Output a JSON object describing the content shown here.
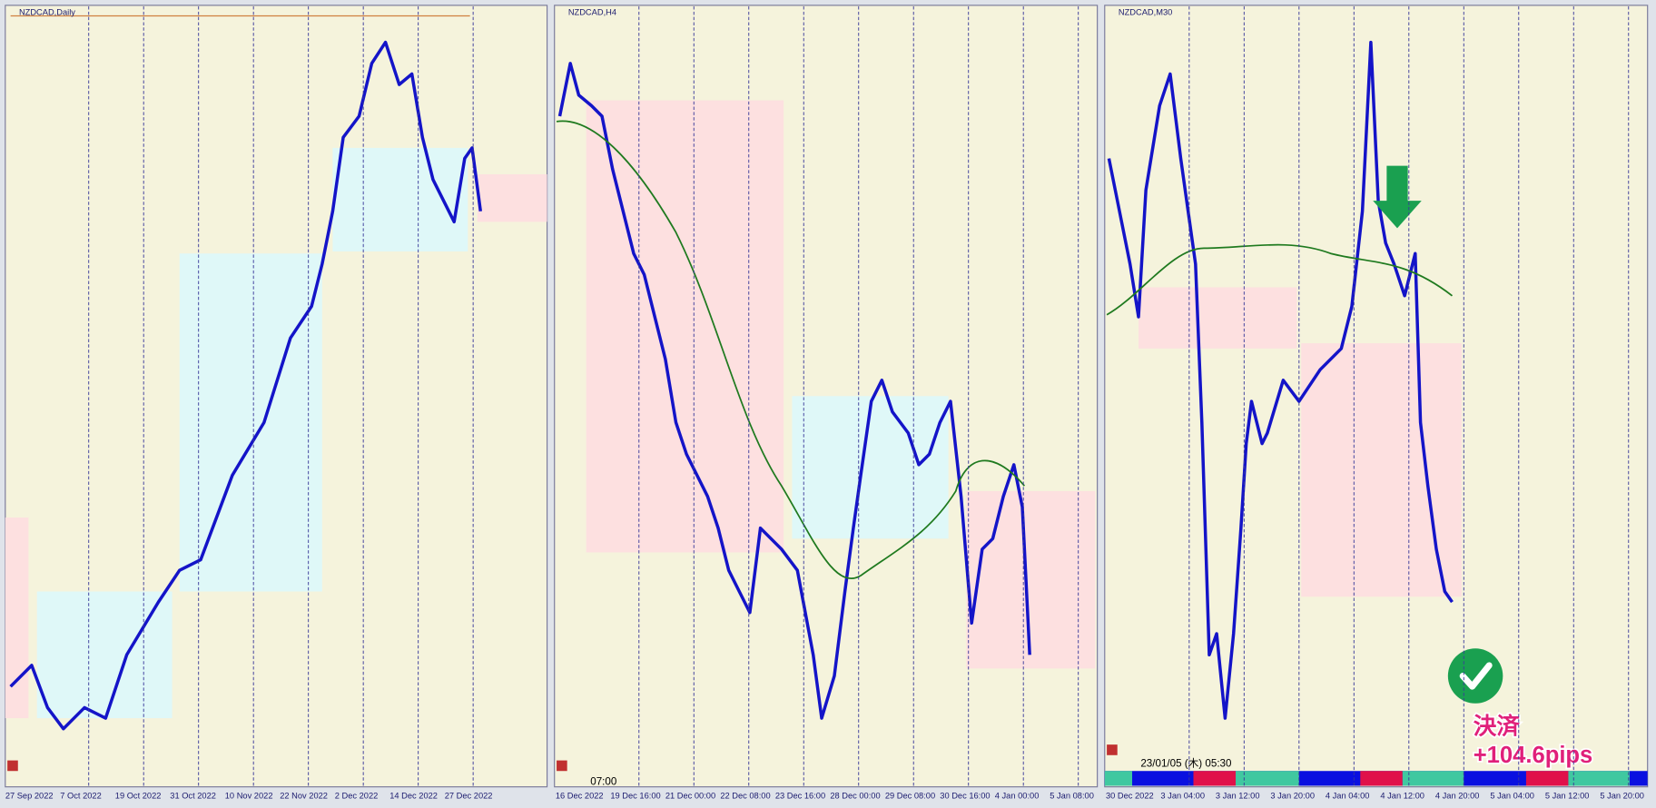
{
  "panels": [
    {
      "title": "NZDCAD,Daily",
      "x_labels": [
        "27 Sep 2022",
        "7 Oct 2022",
        "19 Oct 2022",
        "31 Oct 2022",
        "10 Nov 2022",
        "22 Nov 2022",
        "2 Dec 2022",
        "14 Dec 2022",
        "27 Dec 2022"
      ]
    },
    {
      "title": "NZDCAD,H4",
      "time_label": "07:00",
      "x_labels": [
        "16 Dec 2022",
        "19 Dec 16:00",
        "21 Dec 00:00",
        "22 Dec 08:00",
        "23 Dec 16:00",
        "28 Dec 00:00",
        "29 Dec 08:00",
        "30 Dec 16:00",
        "4 Jan 00:00",
        "5 Jan 08:00"
      ]
    },
    {
      "title": "NZDCAD,M30",
      "time_label": "23/01/05 (木) 05:30",
      "x_labels": [
        "30 Dec 2022",
        "3 Jan 04:00",
        "3 Jan 12:00",
        "3 Jan 20:00",
        "4 Jan 04:00",
        "4 Jan 12:00",
        "4 Jan 20:00",
        "5 Jan 04:00",
        "5 Jan 12:00",
        "5 Jan 20:00"
      ]
    }
  ],
  "result": {
    "label": "決済",
    "pips": "+104.6pips"
  }
}
